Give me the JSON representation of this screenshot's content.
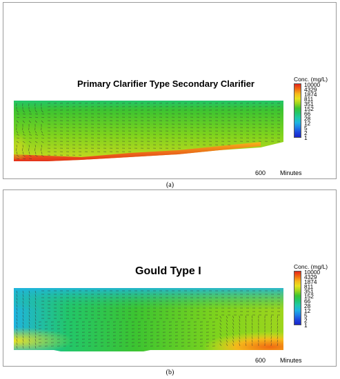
{
  "panel_a": {
    "title": "Primary Clarifier Type Secondary Clarifier",
    "time_value": "600",
    "time_unit": "Minutes",
    "caption": "(a)"
  },
  "panel_b": {
    "title": "Gould Type I",
    "time_value": "600",
    "time_unit": "Minutes",
    "caption": "(b)"
  },
  "legend": {
    "title": "Conc. (mg/L)",
    "labels": [
      "10000",
      "4329",
      "1874",
      "811",
      "351",
      "152",
      "66",
      "28",
      "12",
      "5",
      "2",
      "1"
    ],
    "colors": [
      "#e3261b",
      "#f06a12",
      "#f5b71a",
      "#e8e21f",
      "#9ed51d",
      "#3cc431",
      "#22c66a",
      "#1fc8a8",
      "#1fb4df",
      "#1f7fe6",
      "#1d46de",
      "#1a24c7"
    ]
  }
}
